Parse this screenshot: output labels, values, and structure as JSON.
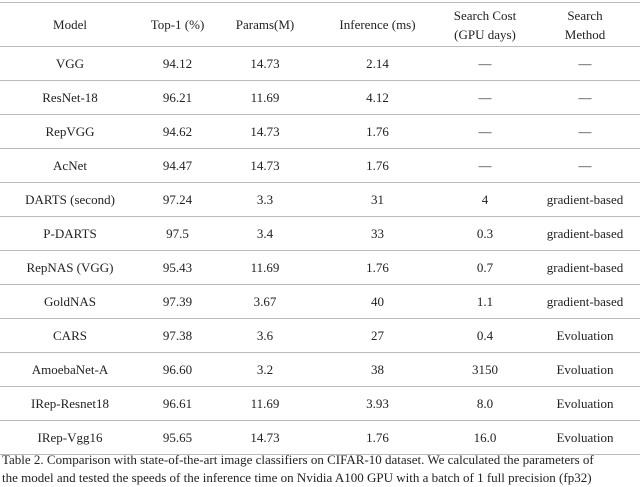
{
  "table": {
    "header": [
      "Model",
      "Top-1 (%)",
      "Params(M)",
      "Inference (ms)",
      "Search Cost\n(GPU days)",
      "Search\nMethod"
    ],
    "rows": [
      [
        "VGG",
        "94.12",
        "14.73",
        "2.14",
        "—",
        "—"
      ],
      [
        "ResNet-18",
        "96.21",
        "11.69",
        "4.12",
        "—",
        "—"
      ],
      [
        "RepVGG",
        "94.62",
        "14.73",
        "1.76",
        "—",
        "—"
      ],
      [
        "AcNet",
        "94.47",
        "14.73",
        "1.76",
        "—",
        "—"
      ],
      [
        "DARTS (second)",
        "97.24",
        "3.3",
        "31",
        "4",
        "gradient-based"
      ],
      [
        "P-DARTS",
        "97.5",
        "3.4",
        "33",
        "0.3",
        "gradient-based"
      ],
      [
        "RepNAS (VGG)",
        "95.43",
        "11.69",
        "1.76",
        "0.7",
        "gradient-based"
      ],
      [
        "GoldNAS",
        "97.39",
        "3.67",
        "40",
        "1.1",
        "gradient-based"
      ],
      [
        "CARS",
        "97.38",
        "3.6",
        "27",
        "0.4",
        "Evoluation"
      ],
      [
        "AmoebaNet-A",
        "96.60",
        "3.2",
        "38",
        "3150",
        "Evoluation"
      ],
      [
        "IRep-Resnet18",
        "96.61",
        "11.69",
        "3.93",
        "8.0",
        "Evoluation"
      ],
      [
        "IRep-Vgg16",
        "95.65",
        "14.73",
        "1.76",
        "16.0",
        "Evoluation"
      ]
    ]
  },
  "caption": [
    "Table 2. Comparison with state-of-the-art image classifiers on CIFAR-10 dataset. We calculated the parameters of",
    "the model and tested the speeds of the inference time on Nvidia A100 GPU with a batch of 1 full precision (fp32)"
  ]
}
